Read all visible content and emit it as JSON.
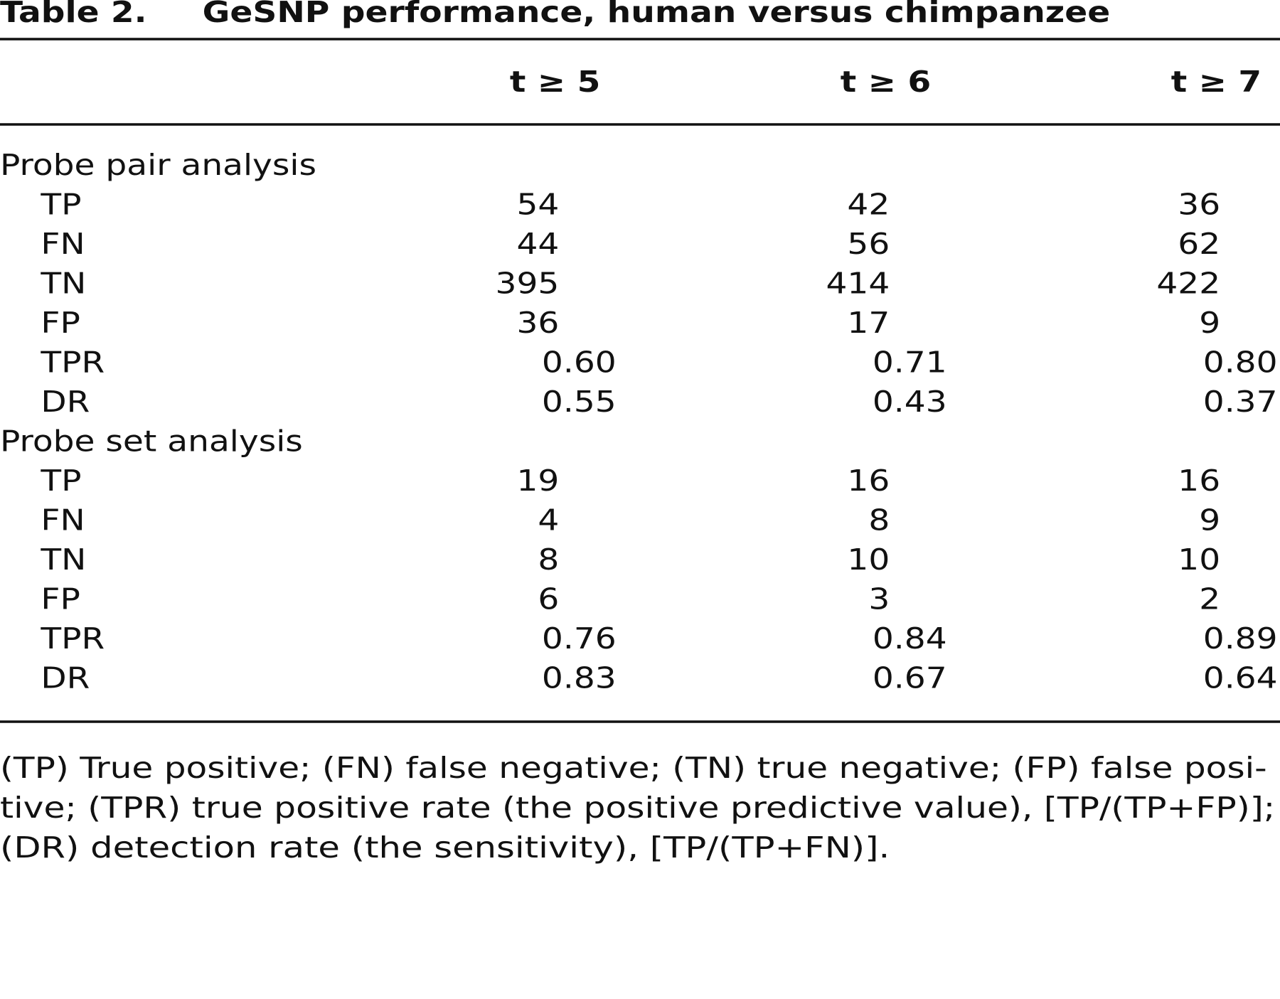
{
  "title": {
    "label": "Table 2.",
    "text": "GeSNP performance, human versus chimpanzee"
  },
  "table": {
    "columns": [
      "t ≥ 5",
      "t ≥ 6",
      "t ≥ 7"
    ],
    "sections": [
      {
        "label": "Probe pair analysis",
        "rows": [
          [
            "TP",
            "54",
            "42",
            "36"
          ],
          [
            "FN",
            "44",
            "56",
            "62"
          ],
          [
            "TN",
            "395",
            "414",
            "422"
          ],
          [
            "FP",
            "36",
            "17",
            "9"
          ],
          [
            "TPR",
            "0.60",
            "0.71",
            "0.80"
          ],
          [
            "DR",
            "0.55",
            "0.43",
            "0.37"
          ]
        ]
      },
      {
        "label": "Probe set analysis",
        "rows": [
          [
            "TP",
            "19",
            "16",
            "16"
          ],
          [
            "FN",
            "4",
            "8",
            "9"
          ],
          [
            "TN",
            "8",
            "10",
            "10"
          ],
          [
            "FP",
            "6",
            "3",
            "2"
          ],
          [
            "TPR",
            "0.76",
            "0.84",
            "0.89"
          ],
          [
            "DR",
            "0.83",
            "0.67",
            "0.64"
          ]
        ]
      }
    ]
  },
  "footnote": [
    "(TP) True positive; (FN) false negative; (TN) true negative; (FP) false posi-",
    "tive; (TPR) true positive rate (the positive predictive value), [TP/(TP+FP)];",
    "(DR) detection rate (the sensitivity), [TP/(TP+FN)]."
  ]
}
